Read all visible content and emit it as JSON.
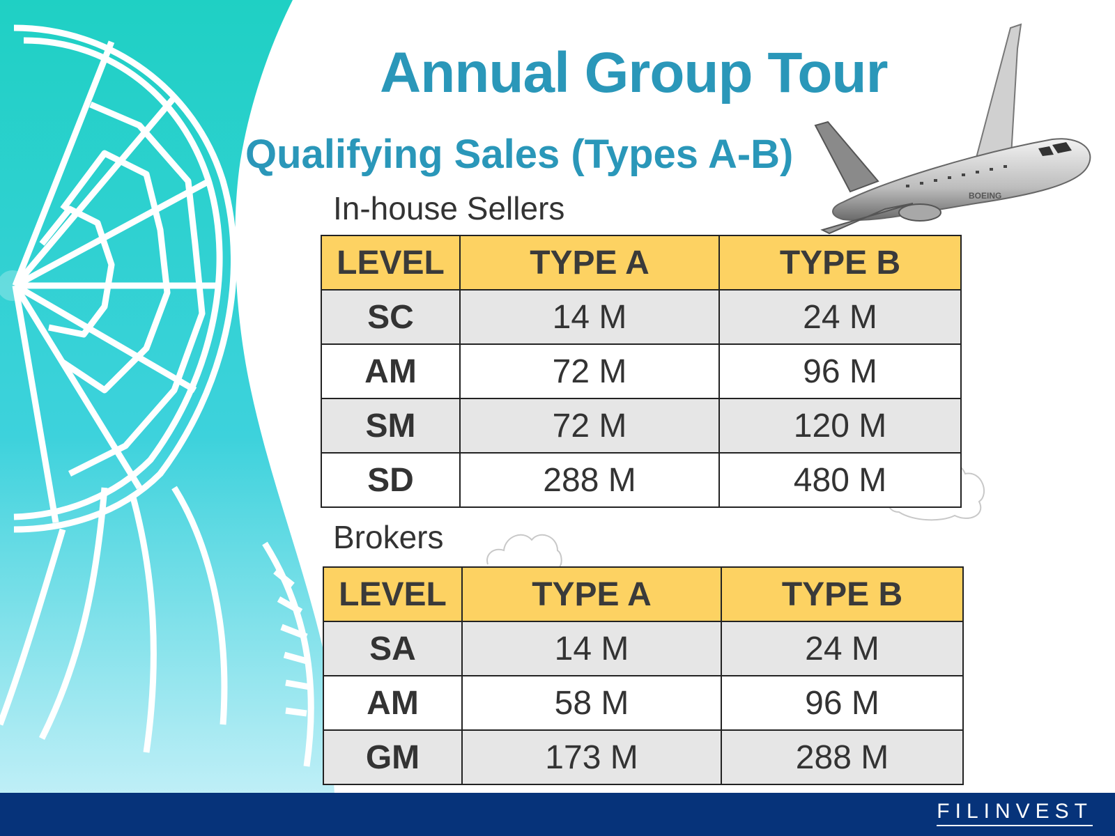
{
  "slide": {
    "title": "Annual Group Tour",
    "subtitle": "Qualifying Sales (Types A-B)"
  },
  "inhouse": {
    "label": "In-house Sellers",
    "headers": [
      "LEVEL",
      "TYPE A",
      "TYPE B"
    ],
    "rows": [
      {
        "level": "SC",
        "type_a": "14 M",
        "type_b": "24 M"
      },
      {
        "level": "AM",
        "type_a": "72 M",
        "type_b": "96 M"
      },
      {
        "level": "SM",
        "type_a": "72 M",
        "type_b": "120 M"
      },
      {
        "level": "SD",
        "type_a": "288 M",
        "type_b": "480 M"
      }
    ]
  },
  "brokers": {
    "label": "Brokers",
    "headers": [
      "LEVEL",
      "TYPE A",
      "TYPE B"
    ],
    "rows": [
      {
        "level": "SA",
        "type_a": "14 M",
        "type_b": "24 M"
      },
      {
        "level": "AM",
        "type_a": "58 M",
        "type_b": "96 M"
      },
      {
        "level": "GM",
        "type_a": "173 M",
        "type_b": "288 M"
      }
    ]
  },
  "airplane": {
    "livery": "BOEING"
  },
  "footer": {
    "brand": "FILINVEST",
    "color": "#06337a"
  },
  "colors": {
    "title": "#2a97b9",
    "table_header": "#fdd262",
    "row_shade": "#e6e6e6",
    "teal_top": "#1fd0c4",
    "teal_bottom": "#5ed7ee"
  }
}
